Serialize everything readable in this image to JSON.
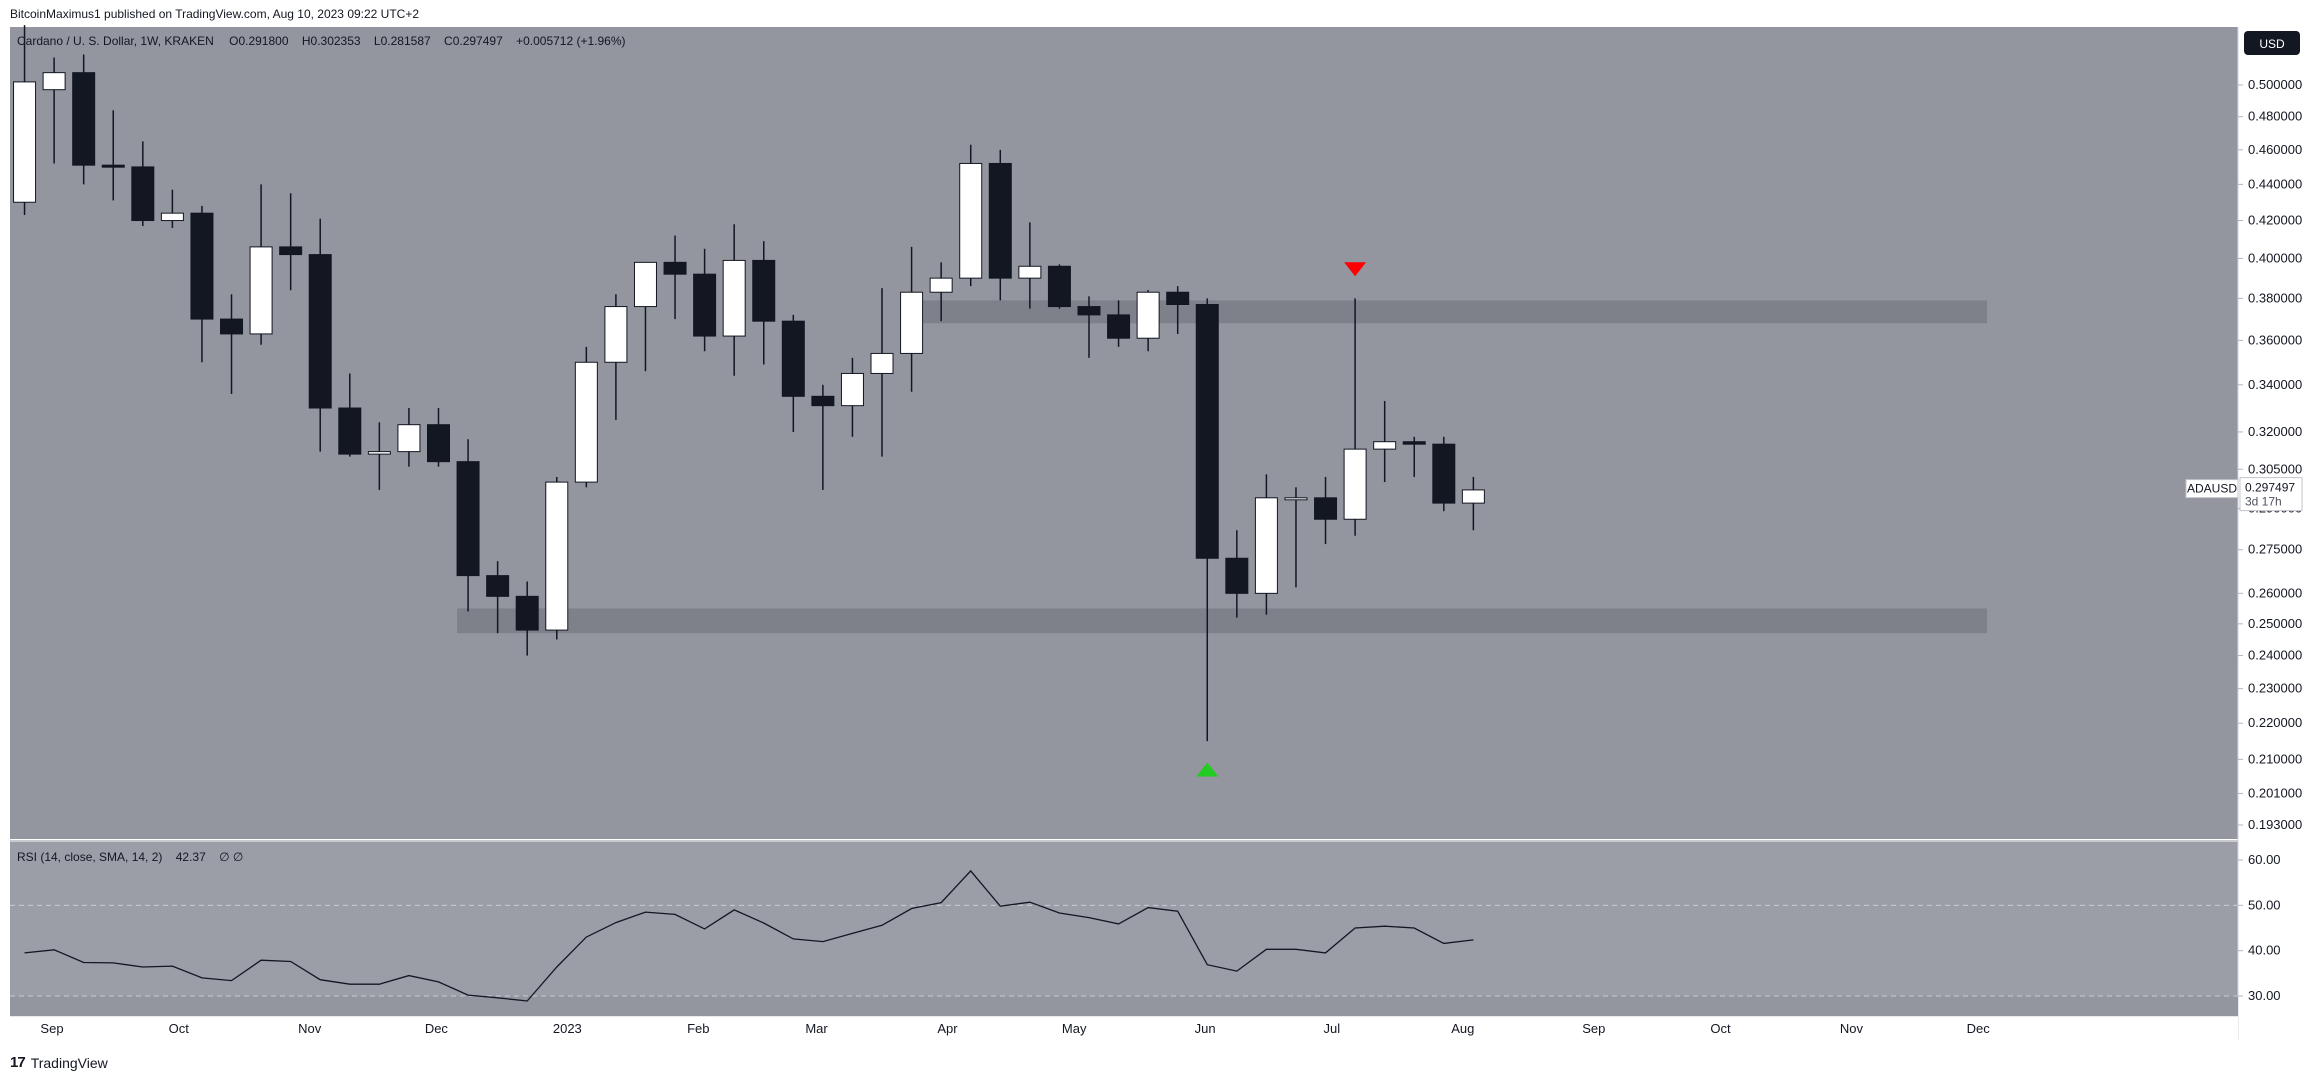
{
  "header": {
    "publish_line": "BitcoinMaximus1 published on TradingView.com, Aug 10, 2023 09:22 UTC+2"
  },
  "footer": {
    "logo_text": "TradingView"
  },
  "colors": {
    "pane_bg": "#93969f",
    "rsi_bg": "#9b9ea6",
    "bull_body": "#ffffff",
    "bear_body": "#131722",
    "zone": "#7b7e86",
    "arrow_down": "#ff0000",
    "arrow_up": "#22cc22"
  },
  "currency_button": "USD",
  "chart_data": [
    {
      "type": "candlestick",
      "symbol_line": "Cardano / U. S. Dollar, 1W, KRAKEN",
      "ohlc": {
        "o": "0.291800",
        "h": "0.302353",
        "l": "0.281587",
        "c": "0.297497",
        "change": "+0.005712 (+1.96%)"
      },
      "last_price": {
        "symbol": "ADAUSD",
        "price": "0.297497",
        "countdown": "3d 17h"
      },
      "y_scale": "log",
      "ylim": [
        0.188,
        0.52
      ],
      "y_ticks": [
        "0.500000",
        "0.480000",
        "0.460000",
        "0.440000",
        "0.420000",
        "0.400000",
        "0.380000",
        "0.360000",
        "0.340000",
        "0.320000",
        "0.305000",
        "0.290000",
        "0.275000",
        "0.260000",
        "0.250000",
        "0.240000",
        "0.230000",
        "0.220000",
        "0.210000",
        "0.201000",
        "0.193000"
      ],
      "x_labels": [
        {
          "label": "Sep",
          "date": "2022-09-01"
        },
        {
          "label": "Oct",
          "date": "2022-10-01"
        },
        {
          "label": "Nov",
          "date": "2022-11-01"
        },
        {
          "label": "Dec",
          "date": "2022-12-01"
        },
        {
          "label": "2023",
          "date": "2023-01-01"
        },
        {
          "label": "Feb",
          "date": "2023-02-01"
        },
        {
          "label": "Mar",
          "date": "2023-03-01"
        },
        {
          "label": "Apr",
          "date": "2023-04-01"
        },
        {
          "label": "May",
          "date": "2023-05-01"
        },
        {
          "label": "Jun",
          "date": "2023-06-01"
        },
        {
          "label": "Jul",
          "date": "2023-07-01"
        },
        {
          "label": "Aug",
          "date": "2023-08-01"
        },
        {
          "label": "Sep",
          "date": "2023-09-01"
        },
        {
          "label": "Oct",
          "date": "2023-10-01"
        },
        {
          "label": "Nov",
          "date": "2023-11-01"
        },
        {
          "label": "Dec",
          "date": "2023-12-01"
        }
      ],
      "candles": [
        {
          "date": "2022-08-22",
          "o": 0.43,
          "h": 0.54,
          "l": 0.423,
          "c": 0.502
        },
        {
          "date": "2022-08-29",
          "o": 0.497,
          "h": 0.518,
          "l": 0.452,
          "c": 0.508
        },
        {
          "date": "2022-09-05",
          "o": 0.508,
          "h": 0.52,
          "l": 0.44,
          "c": 0.451
        },
        {
          "date": "2022-09-12",
          "o": 0.451,
          "h": 0.484,
          "l": 0.431,
          "c": 0.45
        },
        {
          "date": "2022-09-19",
          "o": 0.45,
          "h": 0.465,
          "l": 0.417,
          "c": 0.42
        },
        {
          "date": "2022-09-26",
          "o": 0.42,
          "h": 0.437,
          "l": 0.416,
          "c": 0.424
        },
        {
          "date": "2022-10-03",
          "o": 0.424,
          "h": 0.428,
          "l": 0.35,
          "c": 0.37
        },
        {
          "date": "2022-10-10",
          "o": 0.37,
          "h": 0.382,
          "l": 0.336,
          "c": 0.363
        },
        {
          "date": "2022-10-17",
          "o": 0.363,
          "h": 0.44,
          "l": 0.358,
          "c": 0.406
        },
        {
          "date": "2022-10-24",
          "o": 0.406,
          "h": 0.435,
          "l": 0.384,
          "c": 0.402
        },
        {
          "date": "2022-10-31",
          "o": 0.402,
          "h": 0.421,
          "l": 0.312,
          "c": 0.33
        },
        {
          "date": "2022-11-07",
          "o": 0.33,
          "h": 0.345,
          "l": 0.31,
          "c": 0.311
        },
        {
          "date": "2022-11-14",
          "o": 0.311,
          "h": 0.324,
          "l": 0.297,
          "c": 0.312
        },
        {
          "date": "2022-11-21",
          "o": 0.312,
          "h": 0.33,
          "l": 0.306,
          "c": 0.323
        },
        {
          "date": "2022-11-28",
          "o": 0.323,
          "h": 0.33,
          "l": 0.306,
          "c": 0.308
        },
        {
          "date": "2022-12-05",
          "o": 0.308,
          "h": 0.317,
          "l": 0.254,
          "c": 0.266
        },
        {
          "date": "2022-12-12",
          "o": 0.266,
          "h": 0.271,
          "l": 0.247,
          "c": 0.259
        },
        {
          "date": "2022-12-19",
          "o": 0.259,
          "h": 0.264,
          "l": 0.24,
          "c": 0.248
        },
        {
          "date": "2022-12-26",
          "o": 0.248,
          "h": 0.302,
          "l": 0.245,
          "c": 0.3
        },
        {
          "date": "2023-01-02",
          "o": 0.3,
          "h": 0.357,
          "l": 0.298,
          "c": 0.35
        },
        {
          "date": "2023-01-09",
          "o": 0.35,
          "h": 0.382,
          "l": 0.325,
          "c": 0.376
        },
        {
          "date": "2023-01-16",
          "o": 0.376,
          "h": 0.395,
          "l": 0.346,
          "c": 0.398
        },
        {
          "date": "2023-01-23",
          "o": 0.398,
          "h": 0.412,
          "l": 0.37,
          "c": 0.392
        },
        {
          "date": "2023-01-30",
          "o": 0.392,
          "h": 0.405,
          "l": 0.355,
          "c": 0.362
        },
        {
          "date": "2023-02-06",
          "o": 0.362,
          "h": 0.418,
          "l": 0.344,
          "c": 0.399
        },
        {
          "date": "2023-02-13",
          "o": 0.399,
          "h": 0.409,
          "l": 0.349,
          "c": 0.369
        },
        {
          "date": "2023-02-20",
          "o": 0.369,
          "h": 0.372,
          "l": 0.32,
          "c": 0.335
        },
        {
          "date": "2023-02-27",
          "o": 0.335,
          "h": 0.34,
          "l": 0.297,
          "c": 0.331
        },
        {
          "date": "2023-03-06",
          "o": 0.331,
          "h": 0.352,
          "l": 0.318,
          "c": 0.345
        },
        {
          "date": "2023-03-13",
          "o": 0.345,
          "h": 0.385,
          "l": 0.31,
          "c": 0.354
        },
        {
          "date": "2023-03-20",
          "o": 0.354,
          "h": 0.406,
          "l": 0.337,
          "c": 0.383
        },
        {
          "date": "2023-03-27",
          "o": 0.383,
          "h": 0.398,
          "l": 0.369,
          "c": 0.39
        },
        {
          "date": "2023-04-03",
          "o": 0.39,
          "h": 0.463,
          "l": 0.386,
          "c": 0.452
        },
        {
          "date": "2023-04-10",
          "o": 0.452,
          "h": 0.46,
          "l": 0.379,
          "c": 0.39
        },
        {
          "date": "2023-04-17",
          "o": 0.39,
          "h": 0.419,
          "l": 0.375,
          "c": 0.396
        },
        {
          "date": "2023-04-24",
          "o": 0.396,
          "h": 0.397,
          "l": 0.375,
          "c": 0.376
        },
        {
          "date": "2023-05-01",
          "o": 0.376,
          "h": 0.381,
          "l": 0.352,
          "c": 0.372
        },
        {
          "date": "2023-05-08",
          "o": 0.372,
          "h": 0.379,
          "l": 0.357,
          "c": 0.361
        },
        {
          "date": "2023-05-15",
          "o": 0.361,
          "h": 0.384,
          "l": 0.355,
          "c": 0.383
        },
        {
          "date": "2023-05-22",
          "o": 0.383,
          "h": 0.386,
          "l": 0.363,
          "c": 0.377
        },
        {
          "date": "2023-05-29",
          "o": 0.377,
          "h": 0.38,
          "l": 0.215,
          "c": 0.272
        },
        {
          "date": "2023-06-05",
          "o": 0.272,
          "h": 0.282,
          "l": 0.252,
          "c": 0.26
        },
        {
          "date": "2023-06-12",
          "o": 0.26,
          "h": 0.303,
          "l": 0.253,
          "c": 0.294
        },
        {
          "date": "2023-06-19",
          "o": 0.294,
          "h": 0.298,
          "l": 0.262,
          "c": 0.294
        },
        {
          "date": "2023-06-26",
          "o": 0.294,
          "h": 0.302,
          "l": 0.277,
          "c": 0.286
        },
        {
          "date": "2023-07-03",
          "o": 0.286,
          "h": 0.38,
          "l": 0.28,
          "c": 0.313
        },
        {
          "date": "2023-07-10",
          "o": 0.313,
          "h": 0.333,
          "l": 0.3,
          "c": 0.316
        },
        {
          "date": "2023-07-17",
          "o": 0.316,
          "h": 0.318,
          "l": 0.302,
          "c": 0.315
        },
        {
          "date": "2023-07-24",
          "o": 0.315,
          "h": 0.318,
          "l": 0.289,
          "c": 0.292
        },
        {
          "date": "2023-07-31",
          "o": 0.292,
          "h": 0.302,
          "l": 0.282,
          "c": 0.297
        }
      ],
      "zones": [
        {
          "name": "resistance",
          "from": 0.368,
          "to": 0.379,
          "start": "2023-03-20",
          "end": "2023-11-27"
        },
        {
          "name": "support",
          "from": 0.247,
          "to": 0.255,
          "start": "2022-12-05",
          "end": "2023-11-27"
        }
      ],
      "arrows": [
        {
          "name": "down",
          "date": "2023-07-03",
          "price": 0.395,
          "direction": "down"
        },
        {
          "name": "up",
          "date": "2023-05-29",
          "price": 0.207,
          "direction": "up"
        }
      ]
    },
    {
      "type": "line",
      "indicator_label": "RSI (14, close, SMA, 14, 2)",
      "indicator_value": "42.37",
      "indicator_suffix": "∅ ∅",
      "ylim": [
        27,
        63
      ],
      "y_ticks": [
        "60.00",
        "50.00",
        "40.00",
        "30.00"
      ],
      "levels": [
        50,
        30
      ],
      "x": [
        "2022-08-22",
        "2022-08-29",
        "2022-09-05",
        "2022-09-12",
        "2022-09-19",
        "2022-09-26",
        "2022-10-03",
        "2022-10-10",
        "2022-10-17",
        "2022-10-24",
        "2022-10-31",
        "2022-11-07",
        "2022-11-14",
        "2022-11-21",
        "2022-11-28",
        "2022-12-05",
        "2022-12-12",
        "2022-12-19",
        "2022-12-26",
        "2023-01-02",
        "2023-01-09",
        "2023-01-16",
        "2023-01-23",
        "2023-01-30",
        "2023-02-06",
        "2023-02-13",
        "2023-02-20",
        "2023-02-27",
        "2023-03-06",
        "2023-03-13",
        "2023-03-20",
        "2023-03-27",
        "2023-04-03",
        "2023-04-10",
        "2023-04-17",
        "2023-04-24",
        "2023-05-01",
        "2023-05-08",
        "2023-05-15",
        "2023-05-22",
        "2023-05-29",
        "2023-06-05",
        "2023-06-12",
        "2023-06-19",
        "2023-06-26",
        "2023-07-03",
        "2023-07-10",
        "2023-07-17",
        "2023-07-24",
        "2023-07-31"
      ],
      "values": [
        39.5,
        40.2,
        37.4,
        37.3,
        36.4,
        36.6,
        34.0,
        33.4,
        37.9,
        37.6,
        33.6,
        32.6,
        32.6,
        34.5,
        33.1,
        30.2,
        29.6,
        28.9,
        36.4,
        43.0,
        46.2,
        48.5,
        48.0,
        44.8,
        49.0,
        46.1,
        42.6,
        42.0,
        43.8,
        45.6,
        49.3,
        50.6,
        57.6,
        49.8,
        50.7,
        48.3,
        47.3,
        45.9,
        49.5,
        48.7,
        36.9,
        35.5,
        40.3,
        40.3,
        39.5,
        45.0,
        45.4,
        45.0,
        41.6,
        42.37
      ]
    }
  ]
}
